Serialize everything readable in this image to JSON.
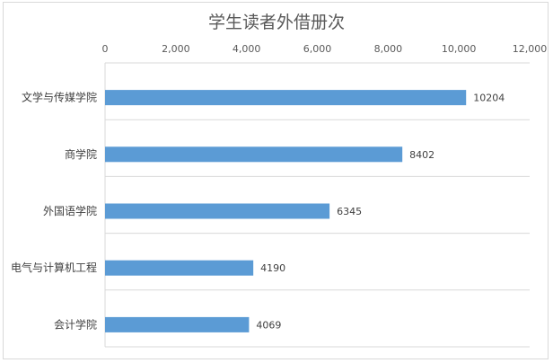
{
  "chart_data": {
    "type": "bar",
    "orientation": "horizontal",
    "title": "学生读者外借册次",
    "categories": [
      "文学与传媒学院",
      "商学院",
      "外国语学院",
      "电气与计算机工程",
      "会计学院"
    ],
    "values": [
      10204,
      8402,
      6345,
      4190,
      4069
    ],
    "data_labels": [
      "10204",
      "8402",
      "6345",
      "4190",
      "4069"
    ],
    "xlim": [
      0,
      12000
    ],
    "x_ticks": [
      "0",
      "2,000",
      "4,000",
      "6,000",
      "8,000",
      "10,000",
      "12,000"
    ],
    "x_axis_position": "top",
    "grid": "horizontal category separators",
    "legend": "none",
    "bar_color": "#5b9bd5"
  }
}
